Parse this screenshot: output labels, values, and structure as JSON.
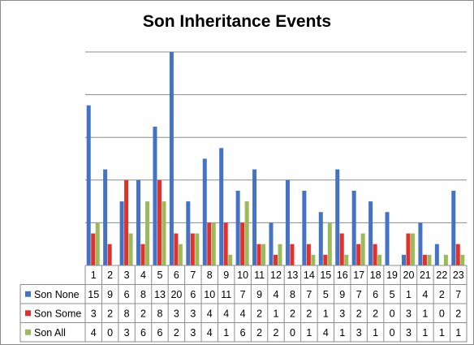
{
  "chart_data": {
    "type": "bar",
    "title": "Son Inheritance Events",
    "categories": [
      "1",
      "2",
      "3",
      "4",
      "5",
      "6",
      "7",
      "8",
      "9",
      "10",
      "11",
      "12",
      "13",
      "14",
      "15",
      "16",
      "17",
      "18",
      "19",
      "20",
      "21",
      "22",
      "23"
    ],
    "series": [
      {
        "name": "Son None",
        "color": "#4472c4",
        "values": [
          15,
          9,
          6,
          8,
          13,
          20,
          6,
          10,
          11,
          7,
          9,
          4,
          8,
          7,
          5,
          9,
          7,
          6,
          5,
          1,
          4,
          2,
          7
        ]
      },
      {
        "name": "Son Some",
        "color": "#e0312b",
        "values": [
          3,
          2,
          8,
          2,
          8,
          3,
          3,
          4,
          4,
          4,
          2,
          1,
          2,
          2,
          1,
          3,
          2,
          2,
          0,
          3,
          1,
          0,
          2
        ]
      },
      {
        "name": "Son All",
        "color": "#9bbb59",
        "values": [
          4,
          0,
          3,
          6,
          6,
          2,
          3,
          4,
          1,
          6,
          2,
          2,
          0,
          1,
          4,
          1,
          3,
          1,
          0,
          3,
          1,
          1,
          1
        ]
      }
    ],
    "ylim": [
      0,
      20
    ],
    "y_gridlines": true,
    "y_tick_labels_shown": false,
    "legend": "data-table"
  }
}
